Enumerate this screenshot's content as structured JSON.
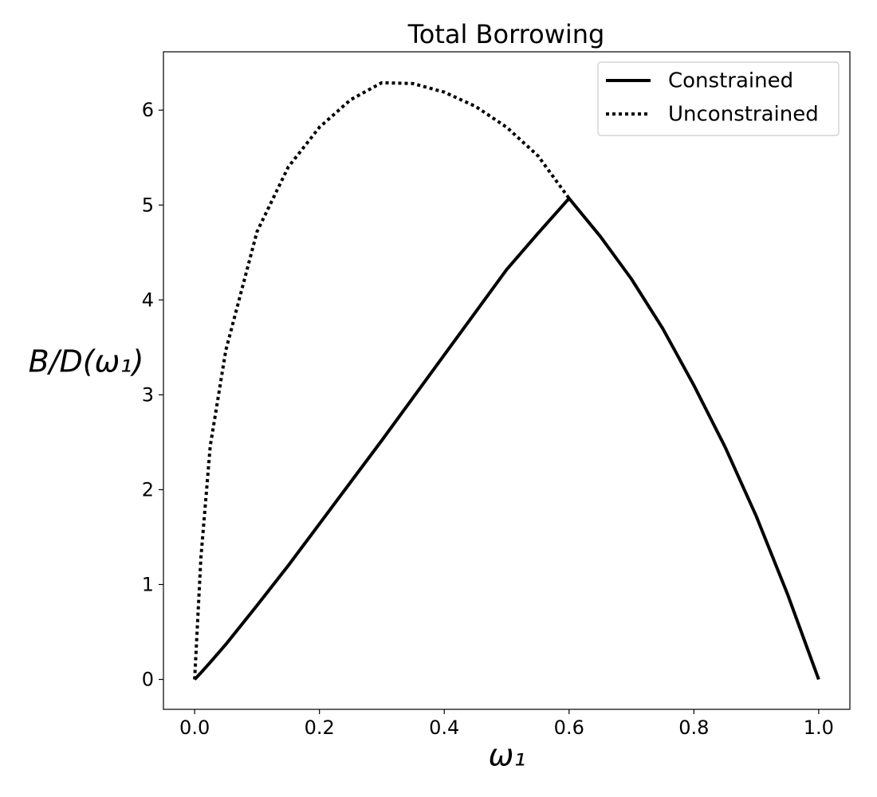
{
  "chart_data": {
    "type": "line",
    "title": "Total Borrowing",
    "xlabel": "ω₁",
    "ylabel": "B/D(ω₁)",
    "x": [
      0,
      0.01,
      0.025,
      0.05,
      0.1,
      0.15,
      0.2,
      0.25,
      0.3,
      0.35,
      0.4,
      0.45,
      0.5,
      0.55,
      0.6,
      0.65,
      0.7,
      0.75,
      0.8,
      0.85,
      0.9,
      0.95,
      1.0
    ],
    "series": [
      {
        "name": "Constrained",
        "color": "#000000",
        "style": "solid",
        "values": [
          0,
          0.07,
          0.18,
          0.37,
          0.78,
          1.2,
          1.64,
          2.08,
          2.52,
          2.97,
          3.42,
          3.87,
          4.32,
          4.7,
          5.07,
          4.67,
          4.22,
          3.7,
          3.1,
          2.45,
          1.72,
          0.9,
          0
        ]
      },
      {
        "name": "Unconstrained",
        "color": "#000000",
        "style": "dotted",
        "values": [
          0,
          1.28,
          2.46,
          3.47,
          4.72,
          5.4,
          5.82,
          6.11,
          6.29,
          6.28,
          6.19,
          6.04,
          5.82,
          5.52,
          5.07,
          null,
          null,
          null,
          null,
          null,
          null,
          null,
          null
        ]
      }
    ],
    "xlim": [
      -0.05,
      1.05
    ],
    "xticks": [
      {
        "value": 0,
        "label": "0.0"
      },
      {
        "value": 0.2,
        "label": "0.2"
      },
      {
        "value": 0.4,
        "label": "0.4"
      },
      {
        "value": 0.6,
        "label": "0.6"
      },
      {
        "value": 0.8,
        "label": "0.8"
      },
      {
        "value": 1.0,
        "label": "1.0"
      }
    ],
    "ylim": [
      -0.315,
      6.615
    ],
    "yticks": [
      0,
      1,
      2,
      3,
      4,
      5,
      6
    ],
    "grid": false,
    "legend": "upper right"
  }
}
